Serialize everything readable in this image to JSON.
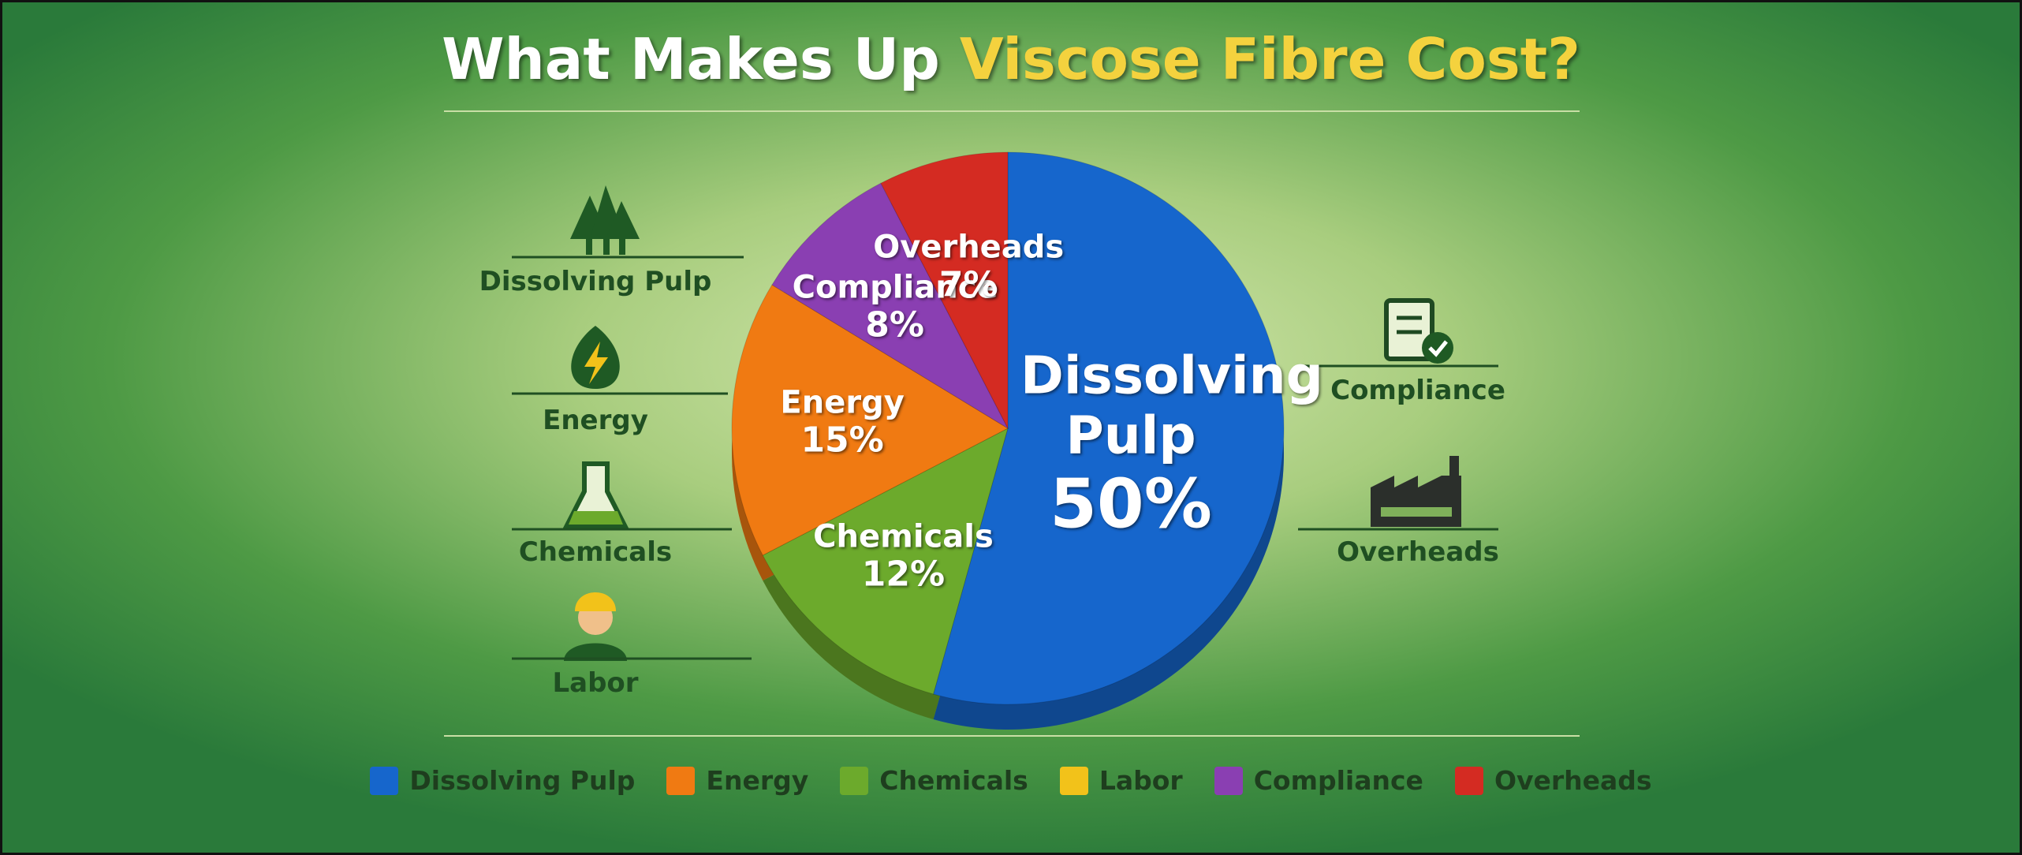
{
  "chart_data": {
    "type": "pie",
    "title": [
      "What Makes Up",
      "Viscose Fibre Cost?"
    ],
    "categories": [
      "Dissolving Pulp",
      "Energy",
      "Chemicals",
      "Labor",
      "Compliance",
      "Overheads"
    ],
    "values": [
      50,
      15,
      12,
      null,
      8,
      7
    ],
    "value_labels": [
      "50%",
      "15%",
      "12%",
      null,
      "8%",
      "7%"
    ],
    "colors": [
      "#1666cc",
      "#f07a12",
      "#6caa2c",
      "#f2c21a",
      "#8a3fb2",
      "#d42b22"
    ],
    "legend": true
  }
}
